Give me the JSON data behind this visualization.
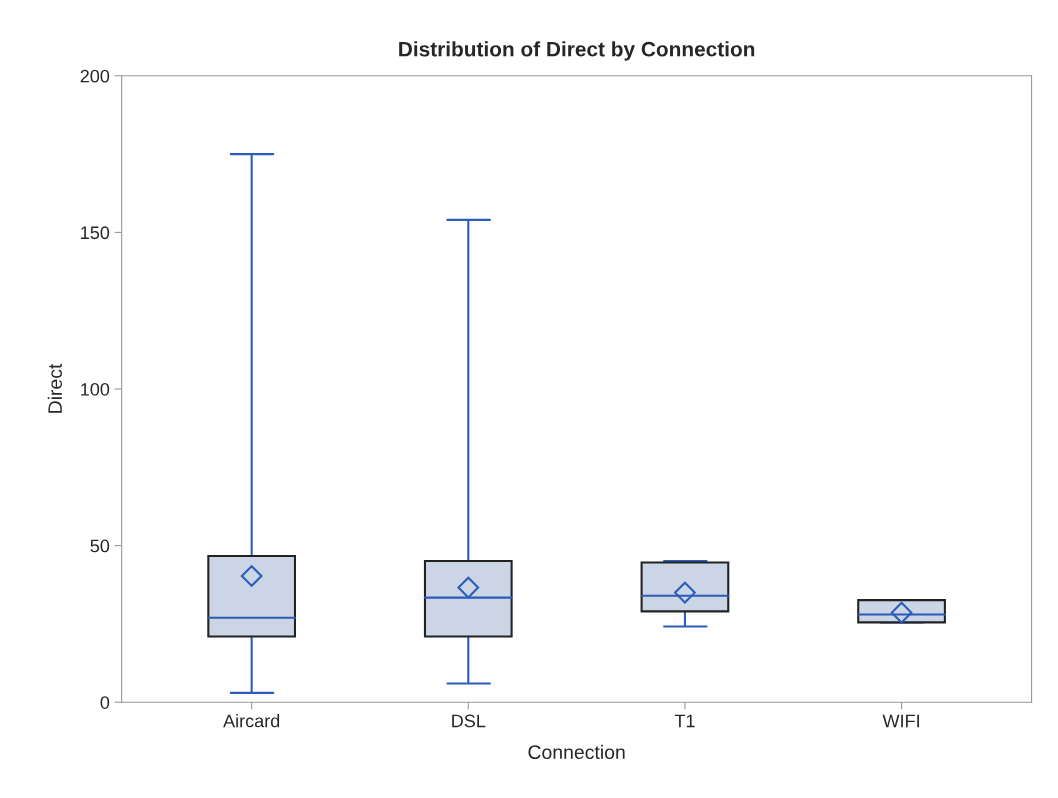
{
  "chart_data": {
    "type": "box",
    "title": "Distribution of Direct by Connection",
    "xlabel": "Connection",
    "ylabel": "Direct",
    "categories": [
      "Aircard",
      "DSL",
      "T1",
      "WIFI"
    ],
    "boxes": [
      {
        "low": 3,
        "q1": 21,
        "median": 27,
        "q3": 46.7,
        "high": 175,
        "mean": 40.3
      },
      {
        "low": 6,
        "q1": 21,
        "median": 33.4,
        "q3": 45.1,
        "high": 154,
        "mean": 36.6
      },
      {
        "low": 24.2,
        "q1": 29,
        "median": 34,
        "q3": 44.6,
        "high": 45.1,
        "mean": 35
      },
      {
        "low": 25.5,
        "q1": 25.5,
        "median": 28,
        "q3": 32.6,
        "high": 32.6,
        "mean": 28.6
      }
    ],
    "color": "#cbd5e6",
    "ylim": [
      0,
      200
    ],
    "yticks": [
      0,
      50,
      100,
      150,
      200
    ],
    "grid": false,
    "marker": "diamond"
  }
}
